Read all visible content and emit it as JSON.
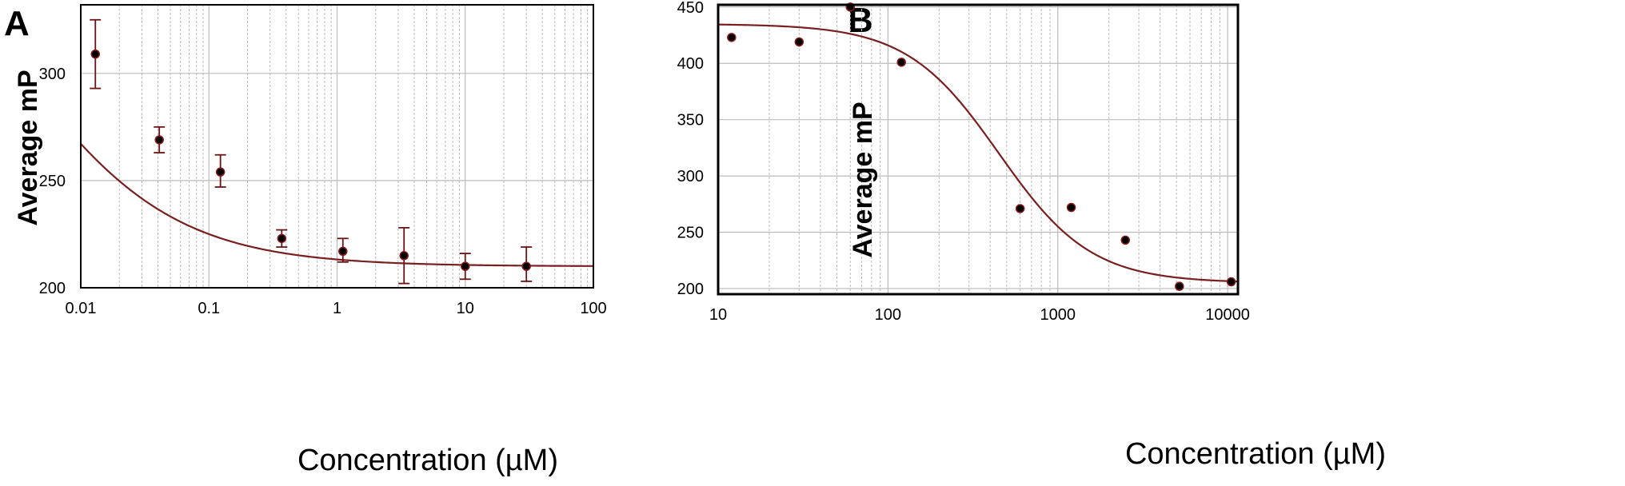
{
  "chart_data": [
    {
      "panel": "A",
      "type": "scatter",
      "xlabel": "Concentration (µM)",
      "ylabel": "Average mP",
      "xscale": "log",
      "xlim": [
        0.01,
        100
      ],
      "ylim": [
        200,
        330
      ],
      "xticks": [
        0.01,
        0.1,
        1,
        10,
        100
      ],
      "xtick_labels": [
        "0.01",
        "0.1",
        "1",
        "10",
        "100"
      ],
      "yticks": [
        200,
        250,
        300
      ],
      "ytick_labels": [
        "200",
        "250",
        "300"
      ],
      "grid": true,
      "colors": {
        "point": "#000000",
        "curve": "#7a1f1f",
        "errorbar": "#6b1414",
        "grid": "#bbbbbb"
      },
      "points": [
        {
          "x": 0.013,
          "y": 309,
          "err_low": 293,
          "err_high": 325
        },
        {
          "x": 0.041,
          "y": 269,
          "err_low": 263,
          "err_high": 275
        },
        {
          "x": 0.123,
          "y": 254,
          "err_low": 247,
          "err_high": 262
        },
        {
          "x": 0.37,
          "y": 223,
          "err_low": 219,
          "err_high": 227
        },
        {
          "x": 1.11,
          "y": 217,
          "err_low": 212,
          "err_high": 223
        },
        {
          "x": 3.33,
          "y": 215,
          "err_low": 202,
          "err_high": 228
        },
        {
          "x": 10,
          "y": 210,
          "err_low": 204,
          "err_high": 216
        },
        {
          "x": 30,
          "y": 210,
          "err_low": 203,
          "err_high": 219
        }
      ],
      "fit": {
        "bottom": 210,
        "top": 400,
        "ec50": 0.003,
        "hill": 0.7
      }
    },
    {
      "panel": "B",
      "type": "scatter",
      "xlabel": "Concentration (µM)",
      "ylabel": "Average mP",
      "xscale": "log",
      "xlim": [
        10,
        10000
      ],
      "ylim": [
        200,
        450
      ],
      "xticks": [
        10,
        100,
        1000,
        10000
      ],
      "xtick_labels": [
        "10",
        "100",
        "1000",
        "10000"
      ],
      "yticks": [
        200,
        250,
        300,
        350,
        400,
        450
      ],
      "ytick_labels": [
        "200",
        "250",
        "300",
        "350",
        "400",
        "450"
      ],
      "grid": true,
      "colors": {
        "point": "#000000",
        "curve": "#7a1f1f",
        "grid": "#bbbbbb"
      },
      "points": [
        {
          "x": 12,
          "y": 423
        },
        {
          "x": 30,
          "y": 419
        },
        {
          "x": 60,
          "y": 450
        },
        {
          "x": 120,
          "y": 401
        },
        {
          "x": 600,
          "y": 271
        },
        {
          "x": 1200,
          "y": 272
        },
        {
          "x": 2500,
          "y": 243
        },
        {
          "x": 5200,
          "y": 202
        },
        {
          "x": 10500,
          "y": 206
        }
      ],
      "fit": {
        "bottom": 205,
        "top": 435,
        "ec50": 450,
        "hill": 1.6
      }
    }
  ]
}
